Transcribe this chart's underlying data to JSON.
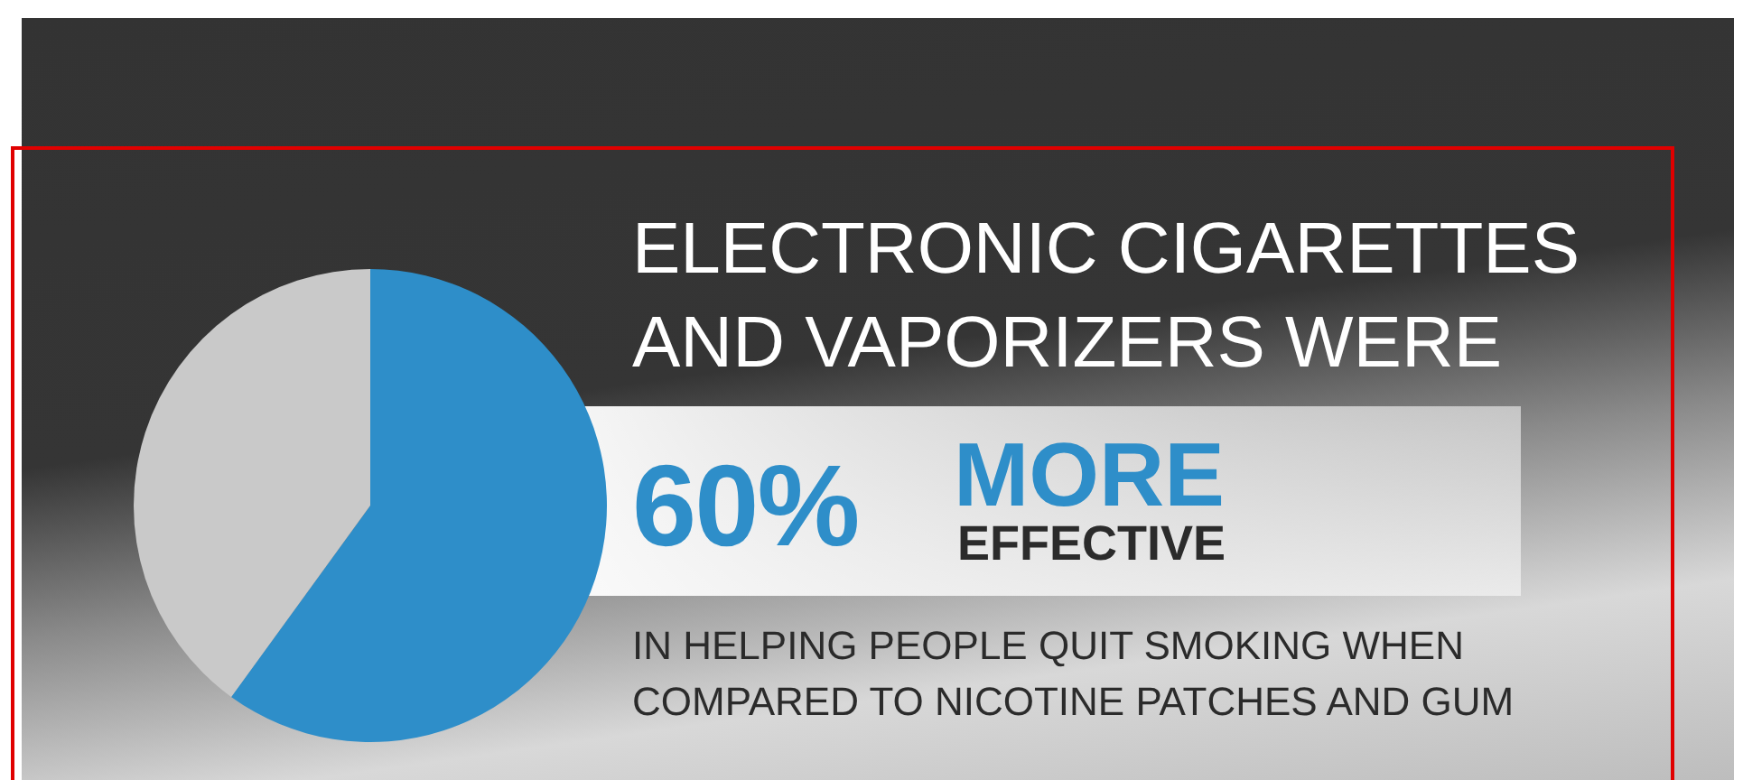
{
  "chart_data": {
    "type": "pie",
    "title": "ELECTRONIC CIGARETTES AND VAPORIZERS WERE",
    "categories": [
      null,
      null
    ],
    "values": [
      60,
      40
    ],
    "colors": [
      "#2e8ec9",
      "#c9c9c9"
    ],
    "annotations": [
      "60%",
      "MORE",
      "EFFECTIVE",
      "IN HELPING PEOPLE QUIT SMOKING WHEN COMPARED TO NICOTINE PATCHES AND GUM"
    ]
  }
}
